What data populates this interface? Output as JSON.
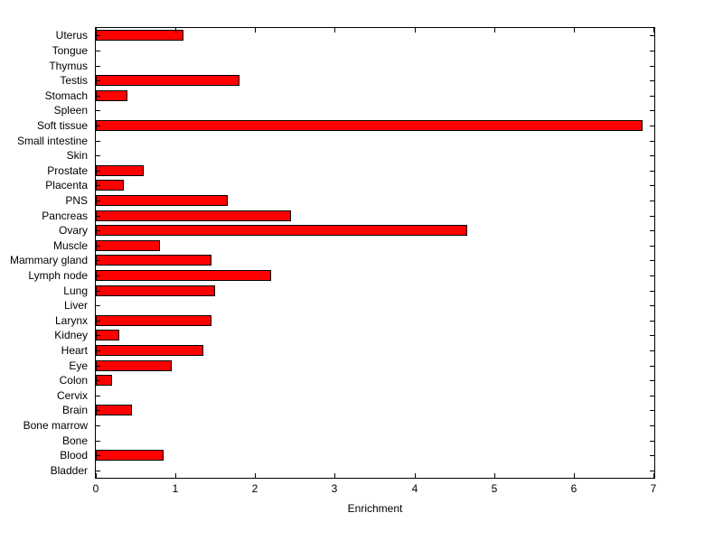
{
  "figure": {
    "background_color": "#ffffff"
  },
  "chart_data": {
    "type": "bar",
    "orientation": "horizontal",
    "title": "",
    "xlabel": "Enrichment",
    "ylabel": "",
    "xlim": [
      0,
      7
    ],
    "xticks": [
      "0",
      "1",
      "2",
      "3",
      "4",
      "5",
      "6",
      "7"
    ],
    "grid": false,
    "legend": "none",
    "bar_color": "#ff0000",
    "bar_edge_color": "#000000",
    "categories": [
      "Uterus",
      "Tongue",
      "Thymus",
      "Testis",
      "Stomach",
      "Spleen",
      "Soft tissue",
      "Small intestine",
      "Skin",
      "Prostate",
      "Placenta",
      "PNS",
      "Pancreas",
      "Ovary",
      "Muscle",
      "Mammary gland",
      "Lymph node",
      "Lung",
      "Liver",
      "Larynx",
      "Kidney",
      "Heart",
      "Eye",
      "Colon",
      "Cervix",
      "Brain",
      "Bone marrow",
      "Bone",
      "Blood",
      "Bladder"
    ],
    "values": [
      1.1,
      0,
      0,
      1.8,
      0.4,
      0,
      6.85,
      0,
      0,
      0.6,
      0.35,
      1.65,
      2.45,
      4.65,
      0.8,
      1.45,
      2.2,
      1.5,
      0,
      1.45,
      0.3,
      1.35,
      0.95,
      0.2,
      0,
      0.45,
      0,
      0,
      0.85,
      0
    ]
  }
}
